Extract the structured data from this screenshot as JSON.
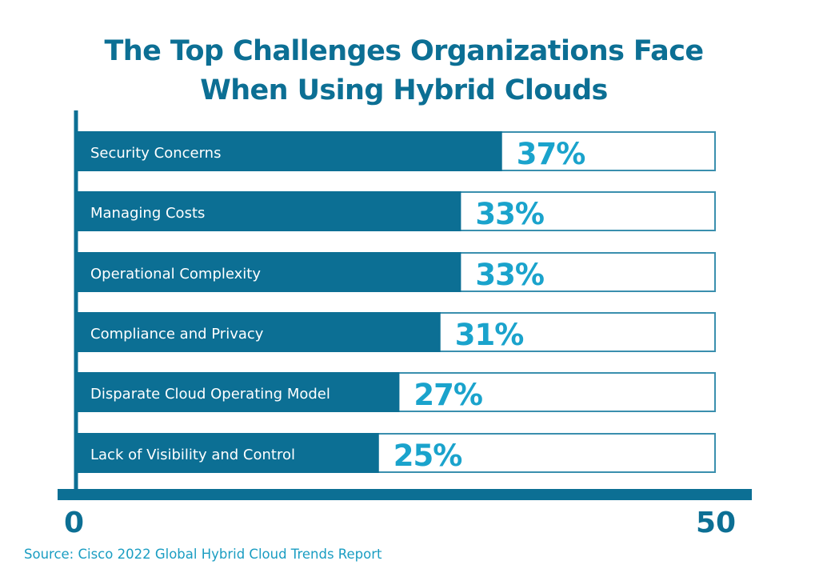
{
  "colors": {
    "primary": "#0c6f94",
    "accent": "#1aa3cc",
    "outline": "#3a8fae",
    "background": "#ffffff"
  },
  "chart_data": {
    "type": "bar",
    "orientation": "horizontal",
    "title": "The Top Challenges Organizations Face When Using Hybrid Clouds",
    "title_lines": [
      "The Top Challenges Organizations Face",
      "When Using Hybrid Clouds"
    ],
    "categories": [
      "Security Concerns",
      "Managing Costs",
      "Operational Complexity",
      "Compliance and Privacy",
      "Disparate Cloud Operating Model",
      "Lack of Visibility and Control"
    ],
    "values": [
      37,
      33,
      33,
      31,
      27,
      25
    ],
    "value_labels": [
      "37%",
      "33%",
      "33%",
      "31%",
      "27%",
      "25%"
    ],
    "unit": "%",
    "xlabel": "",
    "ylabel": "",
    "xlim": [
      0,
      50
    ],
    "x_tick_labels": [
      "0",
      "50"
    ],
    "grid": false,
    "legend": null,
    "source": "Source: Cisco 2022 Global Hybrid Cloud Trends Report"
  }
}
